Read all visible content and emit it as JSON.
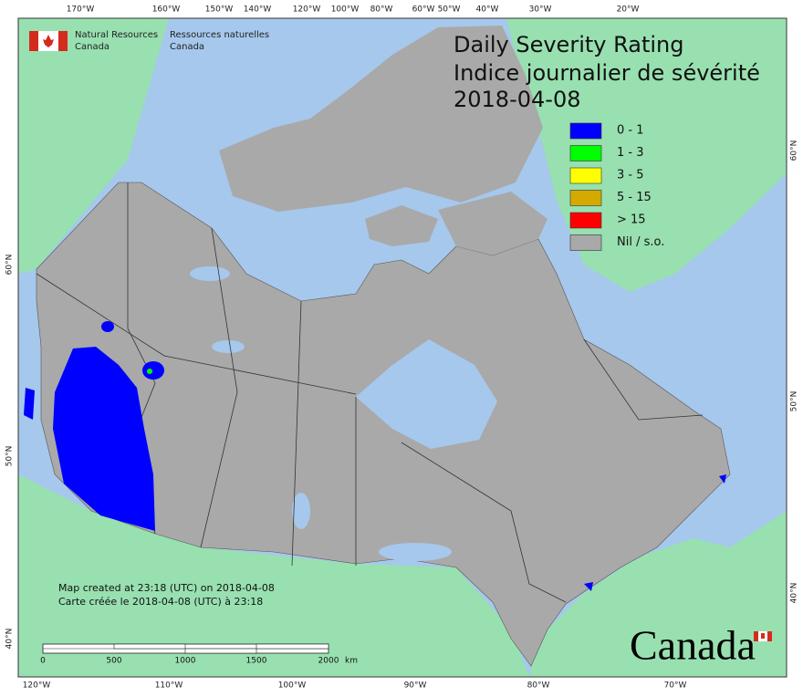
{
  "header": {
    "agency_en": [
      "Natural Resources",
      "Canada"
    ],
    "agency_fr": [
      "Ressources naturelles",
      "Canada"
    ]
  },
  "title": [
    "Daily Severity Rating",
    "Indice journalier de sévérité",
    "2018-04-08"
  ],
  "legend": [
    {
      "label": "0 - 1",
      "color": "#0000ff"
    },
    {
      "label": "1 - 3",
      "color": "#00ff00"
    },
    {
      "label": "3 - 5",
      "color": "#ffff00"
    },
    {
      "label": "5 - 15",
      "color": "#d4aa00"
    },
    {
      "label": "> 15",
      "color": "#ff0000"
    },
    {
      "label": "Nil / s.o.",
      "color": "#a9a9a9"
    }
  ],
  "graticule": {
    "top": [
      "170°W",
      "160°W",
      "150°W",
      "140°W",
      "120°W",
      "100°W",
      "80°W",
      "60°W",
      "50°W",
      "40°W",
      "30°W",
      "20°W"
    ],
    "bottom": [
      "120°W",
      "110°W",
      "100°W",
      "90°W",
      "80°W",
      "70°W"
    ],
    "left": [
      "60°N",
      "50°N",
      "40°N"
    ],
    "right": [
      "60°N",
      "50°N",
      "40°N"
    ]
  },
  "credits": [
    "Map created at 23:18 (UTC) on 2018-04-08",
    "Carte créée le 2018-04-08 (UTC) à 23:18"
  ],
  "scale_bar": {
    "labels": [
      "0",
      "500",
      "1000",
      "1500",
      "2000"
    ],
    "unit": "km"
  },
  "wordmark": "Canada"
}
